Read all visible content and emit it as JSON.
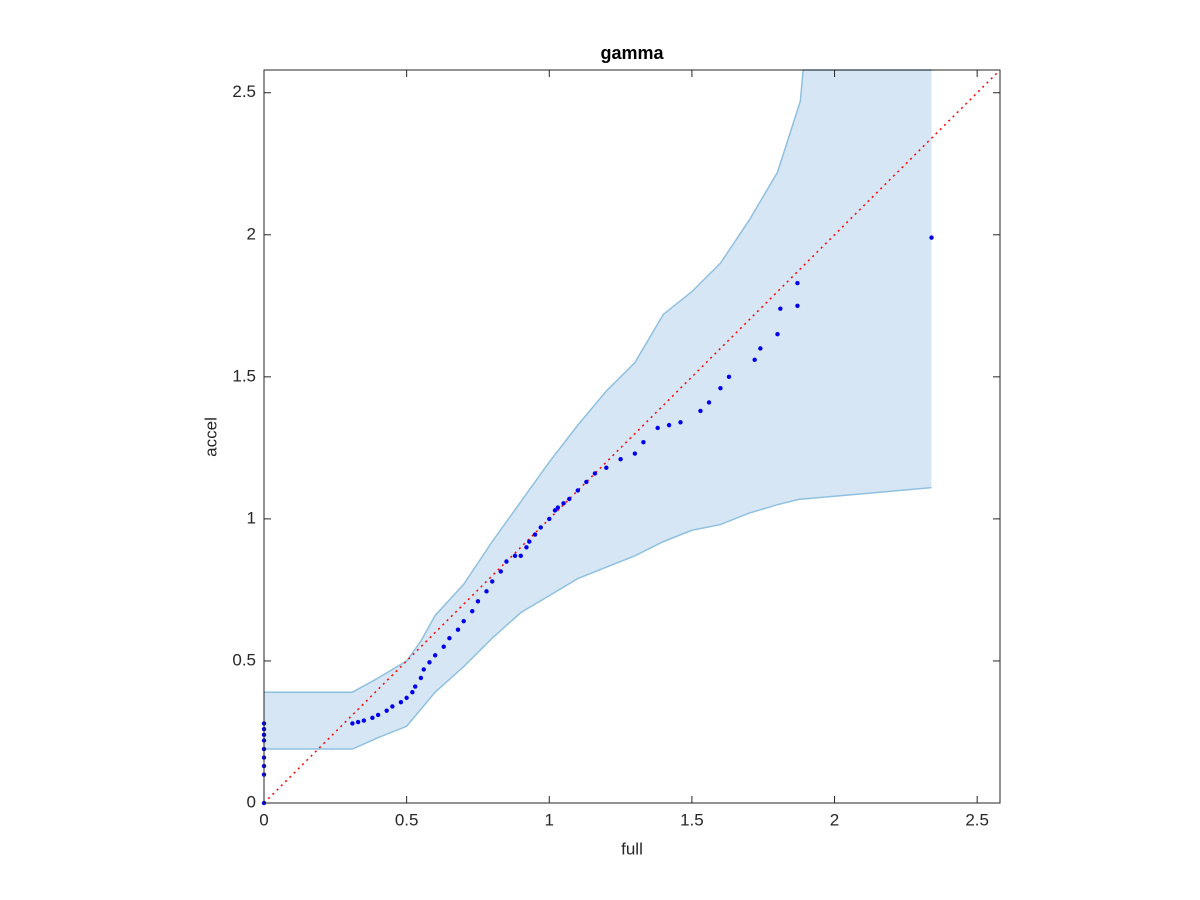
{
  "chart_data": {
    "type": "scatter",
    "title": "gamma",
    "x_label": "full",
    "y_label": "accel",
    "xlim": [
      0,
      2.58
    ],
    "ylim": [
      0,
      2.58
    ],
    "xticks": [
      0,
      0.5,
      1,
      1.5,
      2,
      2.5
    ],
    "yticks": [
      0,
      0.5,
      1,
      1.5,
      2,
      2.5
    ],
    "grid": false,
    "band": {
      "color": "#d6e6f4",
      "edge_color": "#8fc0e0",
      "x": [
        0,
        0.31,
        0.4,
        0.5,
        0.55,
        0.6,
        0.7,
        0.8,
        0.9,
        1.0,
        1.1,
        1.2,
        1.3,
        1.4,
        1.5,
        1.6,
        1.7,
        1.8,
        1.88,
        1.89,
        2.34
      ],
      "upper": [
        0.39,
        0.39,
        0.44,
        0.5,
        0.57,
        0.66,
        0.77,
        0.92,
        1.06,
        1.2,
        1.33,
        1.45,
        1.55,
        1.72,
        1.8,
        1.9,
        2.05,
        2.22,
        2.47,
        2.58,
        2.58
      ],
      "lower": [
        0.19,
        0.19,
        0.23,
        0.27,
        0.33,
        0.39,
        0.48,
        0.58,
        0.67,
        0.73,
        0.79,
        0.83,
        0.87,
        0.92,
        0.96,
        0.98,
        1.02,
        1.05,
        1.07,
        1.07,
        1.11
      ]
    },
    "reference_line": {
      "color": "#ff0000",
      "x": [
        0,
        2.58
      ],
      "y": [
        0,
        2.58
      ]
    },
    "series": [
      {
        "color": "#0000ee",
        "x": [
          0,
          0,
          0,
          0,
          0,
          0,
          0,
          0,
          0,
          0.31,
          0.33,
          0.35,
          0.38,
          0.4,
          0.43,
          0.45,
          0.48,
          0.5,
          0.52,
          0.53,
          0.55,
          0.56,
          0.58,
          0.6,
          0.63,
          0.65,
          0.68,
          0.7,
          0.73,
          0.75,
          0.78,
          0.8,
          0.83,
          0.85,
          0.88,
          0.9,
          0.92,
          0.93,
          0.95,
          0.97,
          1.0,
          1.02,
          1.03,
          1.05,
          1.07,
          1.1,
          1.13,
          1.16,
          1.2,
          1.25,
          1.3,
          1.33,
          1.38,
          1.42,
          1.46,
          1.53,
          1.56,
          1.6,
          1.63,
          1.72,
          1.74,
          1.8,
          1.81,
          1.87,
          1.87,
          2.34
        ],
        "values": [
          0,
          0.1,
          0.13,
          0.16,
          0.19,
          0.22,
          0.24,
          0.26,
          0.28,
          0.28,
          0.285,
          0.29,
          0.3,
          0.31,
          0.325,
          0.34,
          0.355,
          0.37,
          0.39,
          0.41,
          0.44,
          0.47,
          0.495,
          0.52,
          0.55,
          0.58,
          0.61,
          0.64,
          0.675,
          0.71,
          0.745,
          0.78,
          0.815,
          0.85,
          0.87,
          0.87,
          0.9,
          0.92,
          0.945,
          0.97,
          1.0,
          1.03,
          1.04,
          1.055,
          1.07,
          1.1,
          1.13,
          1.16,
          1.18,
          1.21,
          1.23,
          1.27,
          1.32,
          1.33,
          1.34,
          1.38,
          1.41,
          1.46,
          1.5,
          1.56,
          1.6,
          1.65,
          1.74,
          1.75,
          1.83,
          1.99
        ]
      }
    ]
  }
}
